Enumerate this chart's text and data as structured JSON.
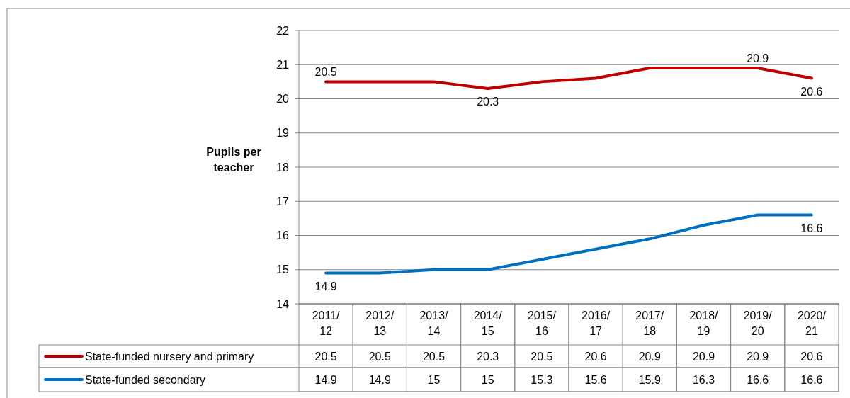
{
  "chart_data": {
    "type": "line",
    "ylabel": "Pupils per teacher",
    "categories": [
      "2011/12",
      "2012/13",
      "2013/14",
      "2014/15",
      "2015/16",
      "2016/17",
      "2017/18",
      "2018/19",
      "2019/20",
      "2020/21"
    ],
    "series": [
      {
        "name": "State-funded nursery and primary",
        "color": "#c00000",
        "values": [
          20.5,
          20.5,
          20.5,
          20.3,
          20.5,
          20.6,
          20.9,
          20.9,
          20.9,
          20.6
        ]
      },
      {
        "name": "State-funded secondary",
        "color": "#0070c0",
        "values": [
          14.9,
          14.9,
          15,
          15,
          15.3,
          15.6,
          15.9,
          16.3,
          16.6,
          16.6
        ]
      }
    ],
    "annotations": [
      {
        "text": "20.5",
        "x": "2011/12",
        "y": 20.5
      },
      {
        "text": "20.3",
        "x": "2014/15",
        "y": 20.3
      },
      {
        "text": "20.9",
        "x": "2019/20",
        "y": 20.9
      },
      {
        "text": "20.6",
        "x": "2020/21",
        "y": 20.6
      },
      {
        "text": "14.9",
        "x": "2011/12",
        "y": 14.9
      },
      {
        "text": "16.6",
        "x": "2020/21",
        "y": 16.6
      }
    ],
    "ylim": [
      14,
      22
    ],
    "yticks": [
      14,
      15,
      16,
      17,
      18,
      19,
      20,
      21,
      22
    ],
    "grid": "y",
    "legend": "bottom",
    "data_labels": true,
    "line_style": "solid",
    "marker": "none"
  }
}
